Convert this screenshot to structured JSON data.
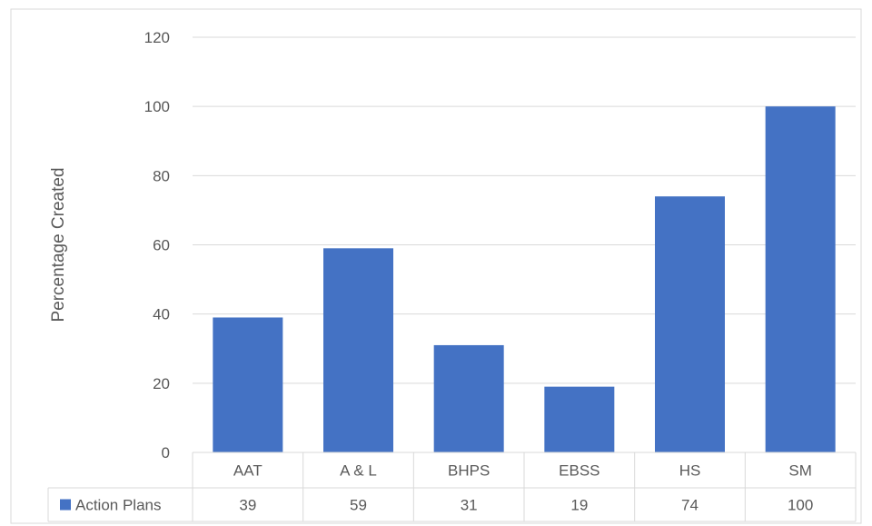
{
  "chart_data": {
    "type": "bar",
    "title": "",
    "xlabel": "",
    "ylabel": "Percentage Created",
    "categories": [
      "AAT",
      "A & L",
      "BHPS",
      "EBSS",
      "HS",
      "SM"
    ],
    "series": [
      {
        "name": "Action Plans",
        "values": [
          39,
          59,
          31,
          19,
          74,
          100
        ],
        "color": "#4472c4"
      }
    ],
    "ylim": [
      0,
      120
    ],
    "yticks": [
      "0",
      "20",
      "40",
      "60",
      "80",
      "100",
      "120"
    ],
    "grid": true,
    "legend": "data-table",
    "data_table": true,
    "value_labels": [
      "39",
      "59",
      "31",
      "19",
      "74",
      "100"
    ]
  }
}
